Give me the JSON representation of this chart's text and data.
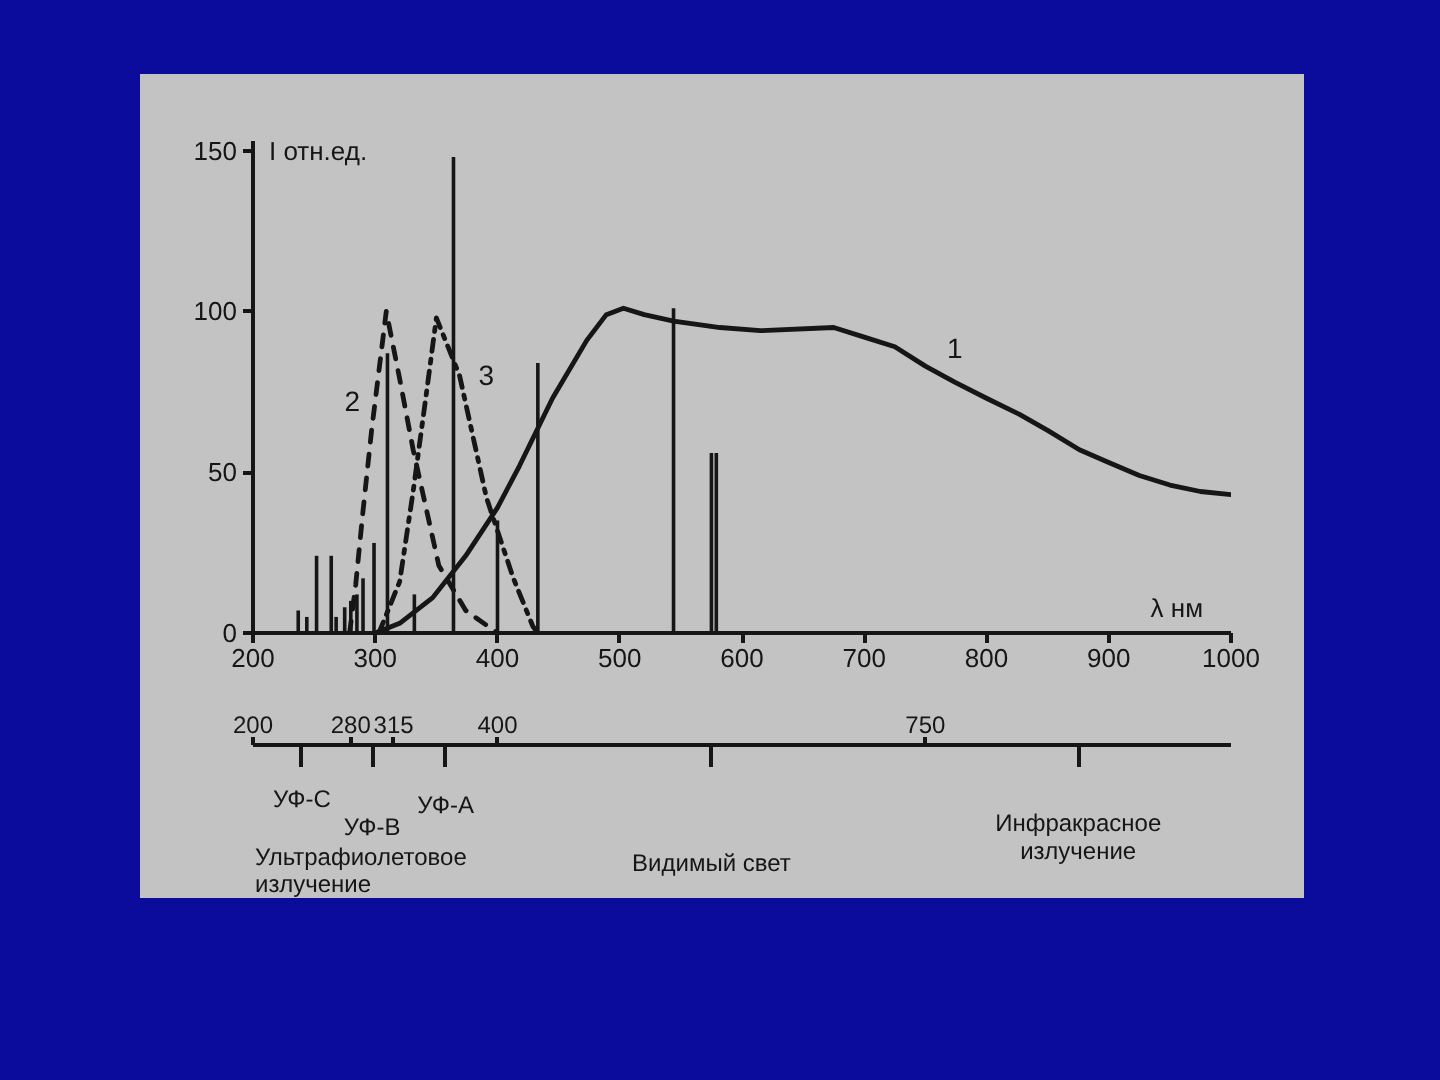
{
  "chart_data": {
    "type": "line",
    "xlabel": "λ нм",
    "ylabel": "I отн.ед.",
    "xlim": [
      200,
      1000
    ],
    "ylim": [
      0,
      153
    ],
    "xticks": [
      200,
      300,
      400,
      500,
      600,
      700,
      800,
      900,
      1000
    ],
    "yticks": [
      0,
      50,
      100,
      150
    ],
    "x2lim": [
      200,
      1000
    ],
    "x2ticks": [
      200,
      280,
      315,
      400,
      750
    ],
    "series": [
      {
        "name": "1",
        "color": "#161616",
        "line_style": "solid",
        "x": [
          300,
          320,
          347,
          374,
          400,
          418,
          445,
          473,
          489,
          503,
          520,
          544,
          582,
          615,
          675,
          700,
          725,
          750,
          774,
          800,
          827,
          850,
          876,
          900,
          925,
          950,
          975,
          1000
        ],
        "values": [
          0,
          3,
          11,
          24,
          39,
          52,
          73,
          91,
          99,
          101,
          99,
          97,
          95,
          94,
          95,
          92,
          89,
          83,
          78,
          73,
          68,
          63,
          57,
          53,
          49,
          46,
          44,
          43
        ]
      },
      {
        "name": "2",
        "color": "#161616",
        "line_style": "dashed",
        "x": [
          279,
          284,
          290,
          297,
          309,
          320,
          331,
          352,
          374,
          400
        ],
        "values": [
          0,
          15,
          38,
          63,
          100,
          79,
          57,
          21,
          7,
          0
        ]
      },
      {
        "name": "3",
        "color": "#161616",
        "line_style": "dashdot",
        "x": [
          303,
          320,
          331,
          342,
          350,
          369,
          391,
          413,
          429,
          433
        ],
        "values": [
          0,
          16,
          44,
          75,
          98,
          80,
          42,
          17,
          2,
          0
        ]
      },
      {
        "type": "bar",
        "color": "#161616",
        "x": [
          237,
          244,
          252,
          264,
          268,
          275,
          280,
          285,
          290,
          299,
          310,
          332,
          364,
          400,
          433,
          544,
          575,
          579
        ],
        "values": [
          7,
          5,
          24,
          24,
          5,
          8,
          10,
          12,
          17,
          28,
          87,
          12,
          148,
          35,
          84,
          101,
          56,
          56
        ]
      }
    ],
    "annotations": [
      "УФ-С",
      "УФ-В",
      "УФ-А",
      "Видимый свет",
      "Инфракрасное\nизлучение",
      "Ультрафиолетовое\nизлучение"
    ]
  }
}
